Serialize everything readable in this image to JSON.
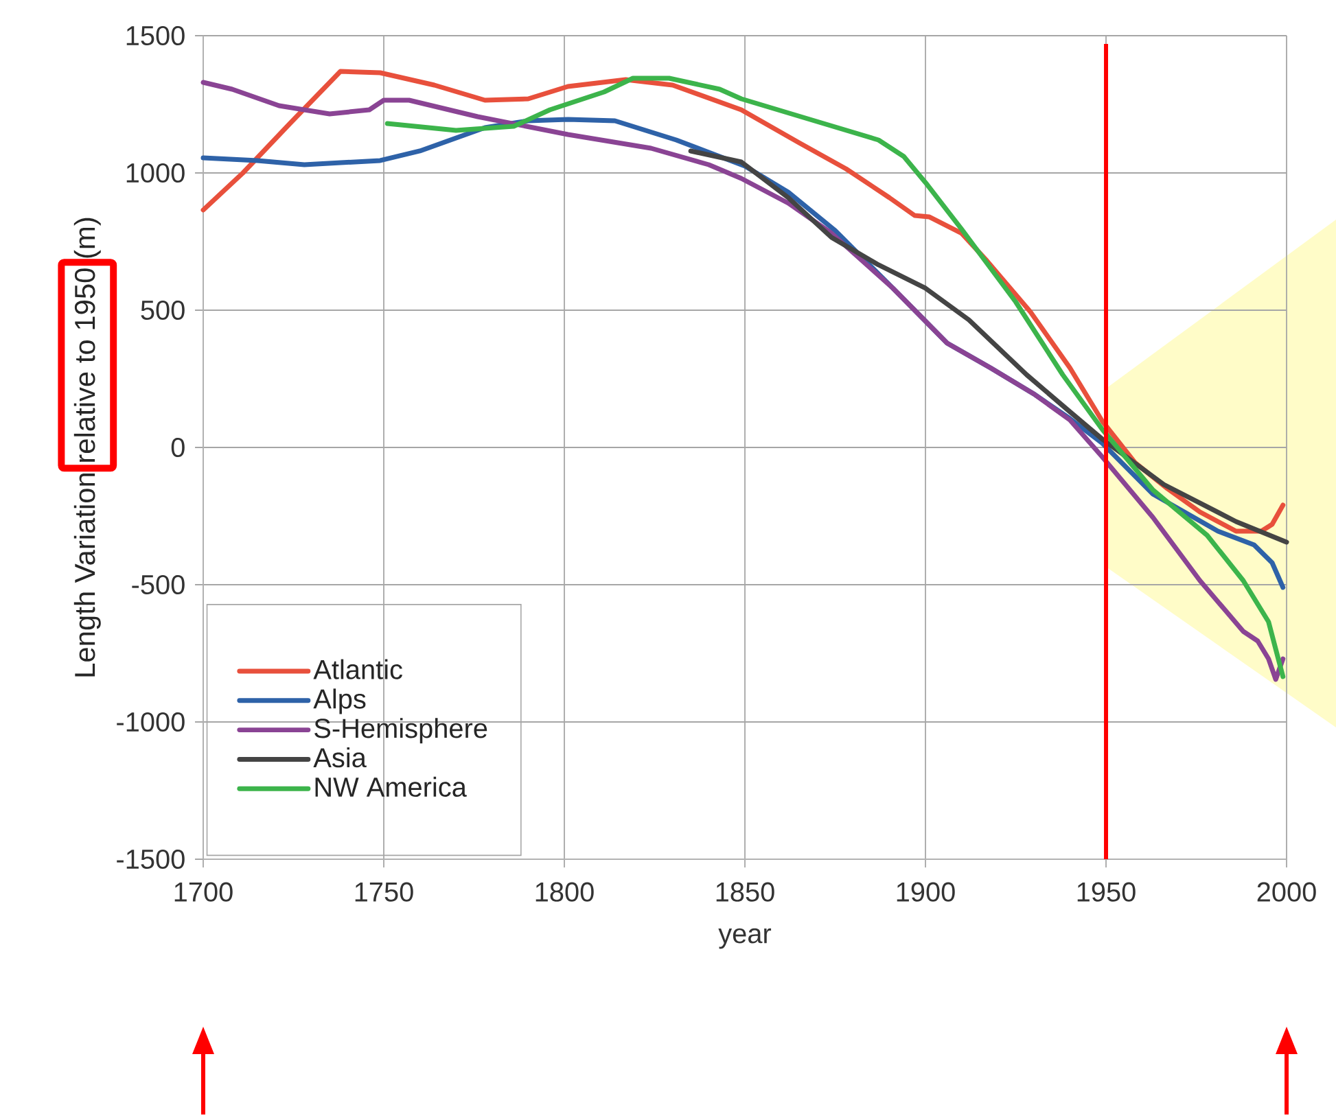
{
  "chart_data": {
    "type": "line",
    "xlabel": "year",
    "ylabel": "Length Variation relative to 1950 (m)",
    "xlim": [
      1700,
      2000
    ],
    "ylim": [
      -1500,
      1500
    ],
    "xticks": [
      1700,
      1750,
      1800,
      1850,
      1900,
      1950,
      2000
    ],
    "yticks": [
      -1500,
      -1000,
      -500,
      0,
      500,
      1000,
      1500
    ],
    "grid": true,
    "legend": "bottom left",
    "ref_lines": [
      {
        "axis": "x",
        "value": 1950,
        "color": "#ff0000"
      }
    ],
    "series": [
      {
        "name": "Atlantic",
        "color": "#e8503c",
        "x": [
          1700,
          1711,
          1724,
          1738,
          1749,
          1764,
          1778,
          1790,
          1801,
          1817,
          1830,
          1849,
          1865,
          1878,
          1890,
          1897,
          1901,
          1910,
          1917,
          1929,
          1940,
          1949,
          1958,
          1967,
          1976,
          1986,
          1993,
          1996,
          1999
        ],
        "values": [
          865,
          1000,
          1180,
          1370,
          1365,
          1320,
          1265,
          1270,
          1315,
          1340,
          1320,
          1230,
          1110,
          1015,
          910,
          845,
          840,
          780,
          680,
          495,
          290,
          95,
          -55,
          -150,
          -235,
          -305,
          -305,
          -280,
          -210
        ]
      },
      {
        "name": "Alps",
        "color": "#2e62a8",
        "x": [
          1700,
          1715,
          1728,
          1749,
          1760,
          1778,
          1790,
          1801,
          1814,
          1831,
          1840,
          1850,
          1862,
          1875,
          1891,
          1906,
          1918,
          1930,
          1940,
          1949,
          1963,
          1981,
          1991,
          1996,
          1999
        ],
        "values": [
          1055,
          1045,
          1030,
          1045,
          1080,
          1165,
          1190,
          1195,
          1190,
          1120,
          1075,
          1025,
          930,
          790,
          580,
          380,
          290,
          195,
          105,
          15,
          -170,
          -305,
          -355,
          -420,
          -510
        ]
      },
      {
        "name": "S-Hemisphere",
        "color": "#8a4494",
        "x": [
          1700,
          1708,
          1721,
          1735,
          1746,
          1750,
          1757,
          1776,
          1801,
          1824,
          1840,
          1849,
          1862,
          1874,
          1891,
          1906,
          1918,
          1930,
          1940,
          1949,
          1963,
          1976,
          1988,
          1992,
          1995,
          1997,
          1999
        ],
        "values": [
          1330,
          1305,
          1245,
          1215,
          1230,
          1265,
          1265,
          1205,
          1140,
          1090,
          1030,
          980,
          890,
          780,
          580,
          380,
          290,
          195,
          100,
          -35,
          -255,
          -485,
          -670,
          -705,
          -770,
          -845,
          -770
        ]
      },
      {
        "name": "Asia",
        "color": "#444444",
        "x": [
          1835,
          1849,
          1862,
          1874,
          1887,
          1900,
          1912,
          1928,
          1940,
          1949,
          1966,
          1986,
          2000
        ],
        "values": [
          1080,
          1040,
          910,
          765,
          665,
          580,
          465,
          265,
          130,
          30,
          -135,
          -270,
          -345
        ]
      },
      {
        "name": "NW America",
        "color": "#3cb44b",
        "x": [
          1751,
          1770,
          1786,
          1796,
          1811,
          1819,
          1829,
          1843,
          1849,
          1868,
          1887,
          1894,
          1900,
          1910,
          1925,
          1938,
          1949,
          1963,
          1978,
          1988,
          1995,
          1999
        ],
        "values": [
          1180,
          1155,
          1170,
          1230,
          1295,
          1345,
          1345,
          1305,
          1270,
          1195,
          1120,
          1060,
          965,
          795,
          530,
          265,
          65,
          -155,
          -320,
          -485,
          -635,
          -835
        ]
      }
    ]
  }
}
